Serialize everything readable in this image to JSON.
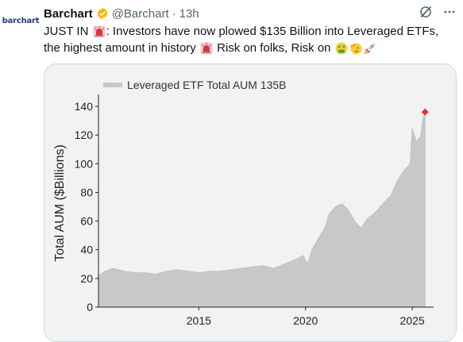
{
  "author": {
    "avatar_text": "barchart",
    "name": "Barchart",
    "handle": "@Barchart",
    "separator": "·",
    "time": "13h"
  },
  "tweet": {
    "line1_part1": "JUST IN ",
    "line1_part2": ": Investors have now plowed $135 Billion into Leveraged ETFs,",
    "line2_part1": "the highest amount in history ",
    "line2_part2": " Risk on folks, Risk on "
  },
  "icons": {
    "verified": "verified-badge-icon",
    "grok": "grok-icon",
    "more": "more-icon",
    "siren": "rotating-light-emoji",
    "money": "money-mouth-emoji",
    "salute": "saluting-face-emoji",
    "rocket": "rocket-emoji"
  },
  "colors": {
    "verified": "#f5b800",
    "series": "#c8c8c8",
    "marker": "#e8312f",
    "chart_bg": "#f2f2f2"
  },
  "chart_data": {
    "type": "area",
    "legend": "Leveraged ETF Total AUM 135B",
    "ylabel": "Total AUM ($Billions)",
    "xlabel": "",
    "ylim": [
      0,
      145
    ],
    "xlim": [
      2010.3,
      2026.0
    ],
    "yticks": [
      0,
      20,
      40,
      60,
      80,
      100,
      120,
      140
    ],
    "xticks": [
      2015,
      2020,
      2025
    ],
    "series": [
      {
        "x": [
          2010.3,
          2010.6,
          2011.0,
          2011.5,
          2012.0,
          2012.5,
          2013.0,
          2013.5,
          2014.0,
          2014.5,
          2015.0,
          2015.5,
          2016.0,
          2016.5,
          2017.0,
          2017.5,
          2018.0,
          2018.5,
          2019.0,
          2019.5,
          2019.9,
          2020.1,
          2020.3,
          2020.6,
          2020.9,
          2021.1,
          2021.4,
          2021.7,
          2022.0,
          2022.3,
          2022.6,
          2022.9,
          2023.2,
          2023.5,
          2023.8,
          2024.0,
          2024.3,
          2024.6,
          2024.9,
          2025.0,
          2025.2,
          2025.4,
          2025.5,
          2025.6
        ],
        "values": [
          22,
          25,
          27,
          25,
          24,
          24,
          23,
          25,
          26,
          25,
          24,
          25,
          25,
          26,
          27,
          28,
          29,
          27,
          30,
          33,
          36,
          30,
          40,
          48,
          55,
          65,
          70,
          72,
          68,
          60,
          55,
          62,
          65,
          70,
          75,
          78,
          88,
          95,
          100,
          125,
          115,
          120,
          132,
          135
        ]
      }
    ],
    "highlight": {
      "x": 2025.6,
      "y": 136
    }
  }
}
